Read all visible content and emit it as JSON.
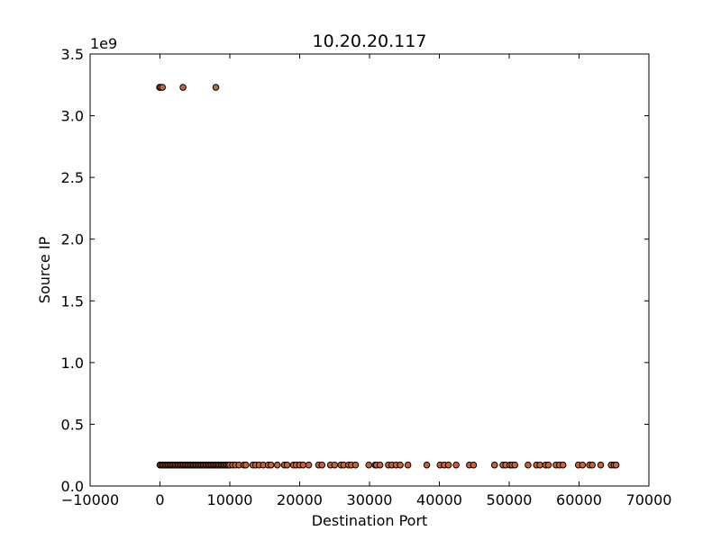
{
  "chart_data": {
    "type": "scatter",
    "title": "10.20.20.117",
    "xlabel": "Destination Port",
    "ylabel": "Source IP",
    "y_offset_label": "1e9",
    "xlim": [
      -10000,
      70000
    ],
    "ylim": [
      0,
      3.5
    ],
    "y_scale_factor": 1000000000,
    "xticks": [
      -10000,
      0,
      10000,
      20000,
      30000,
      40000,
      50000,
      60000,
      70000
    ],
    "xtick_labels": [
      "−10000",
      "0",
      "10000",
      "20000",
      "30000",
      "40000",
      "50000",
      "60000",
      "70000"
    ],
    "yticks": [
      0,
      0.5,
      1.0,
      1.5,
      2.0,
      2.5,
      3.0,
      3.5
    ],
    "ytick_labels": [
      "0.0",
      "0.5",
      "1.0",
      "1.5",
      "2.0",
      "2.5",
      "3.0",
      "3.5"
    ],
    "grid": false,
    "marker_color": "#c8643c",
    "marker_edge_color": "#000000",
    "series": [
      {
        "x": [
          -50,
          100,
          350,
          3300,
          8000,
          0,
          200,
          400,
          600,
          800,
          1000,
          1200,
          1400,
          1600,
          1800,
          2000,
          2200,
          2400,
          2600,
          2800,
          3000,
          3200,
          3400,
          3600,
          3800,
          4000,
          4200,
          4400,
          4600,
          4800,
          5000,
          5200,
          5400,
          5600,
          5800,
          6000,
          6200,
          6400,
          6600,
          6800,
          7000,
          7200,
          7400,
          7600,
          7800,
          8000,
          8200,
          8400,
          8600,
          8800,
          9000,
          9200,
          9400,
          9600,
          9800,
          10000,
          10400,
          10800,
          11300,
          12000,
          12300,
          13300,
          13700,
          14200,
          14800,
          15500,
          15900,
          16800,
          17800,
          18200,
          19100,
          19500,
          20000,
          20500,
          21300,
          22700,
          23200,
          24400,
          25000,
          25900,
          26300,
          27000,
          27400,
          28000,
          29900,
          30800,
          31000,
          31500,
          32700,
          33200,
          33800,
          34400,
          35500,
          38200,
          40100,
          40700,
          41300,
          42400,
          44300,
          44900,
          47900,
          49100,
          49500,
          50100,
          50400,
          50800,
          52700,
          53900,
          54400,
          55200,
          55600,
          56700,
          57200,
          57700,
          59900,
          60500,
          61500,
          61900,
          63100,
          64600,
          65000,
          65300
        ],
        "y": [
          3.23,
          3.23,
          3.23,
          3.23,
          3.23,
          0.17,
          0.17,
          0.17,
          0.17,
          0.17,
          0.17,
          0.17,
          0.17,
          0.17,
          0.17,
          0.17,
          0.17,
          0.17,
          0.17,
          0.17,
          0.17,
          0.17,
          0.17,
          0.17,
          0.17,
          0.17,
          0.17,
          0.17,
          0.17,
          0.17,
          0.17,
          0.17,
          0.17,
          0.17,
          0.17,
          0.17,
          0.17,
          0.17,
          0.17,
          0.17,
          0.17,
          0.17,
          0.17,
          0.17,
          0.17,
          0.17,
          0.17,
          0.17,
          0.17,
          0.17,
          0.17,
          0.17,
          0.17,
          0.17,
          0.17,
          0.17,
          0.17,
          0.17,
          0.17,
          0.17,
          0.17,
          0.17,
          0.17,
          0.17,
          0.17,
          0.17,
          0.17,
          0.17,
          0.17,
          0.17,
          0.17,
          0.17,
          0.17,
          0.17,
          0.17,
          0.17,
          0.17,
          0.17,
          0.17,
          0.17,
          0.17,
          0.17,
          0.17,
          0.17,
          0.17,
          0.17,
          0.17,
          0.17,
          0.17,
          0.17,
          0.17,
          0.17,
          0.17,
          0.17,
          0.17,
          0.17,
          0.17,
          0.17,
          0.17,
          0.17,
          0.17,
          0.17,
          0.17,
          0.17,
          0.17,
          0.17,
          0.17,
          0.17,
          0.17,
          0.17,
          0.17,
          0.17,
          0.17,
          0.17,
          0.17,
          0.17,
          0.17,
          0.17,
          0.17,
          0.17,
          0.17,
          0.17
        ]
      }
    ]
  }
}
